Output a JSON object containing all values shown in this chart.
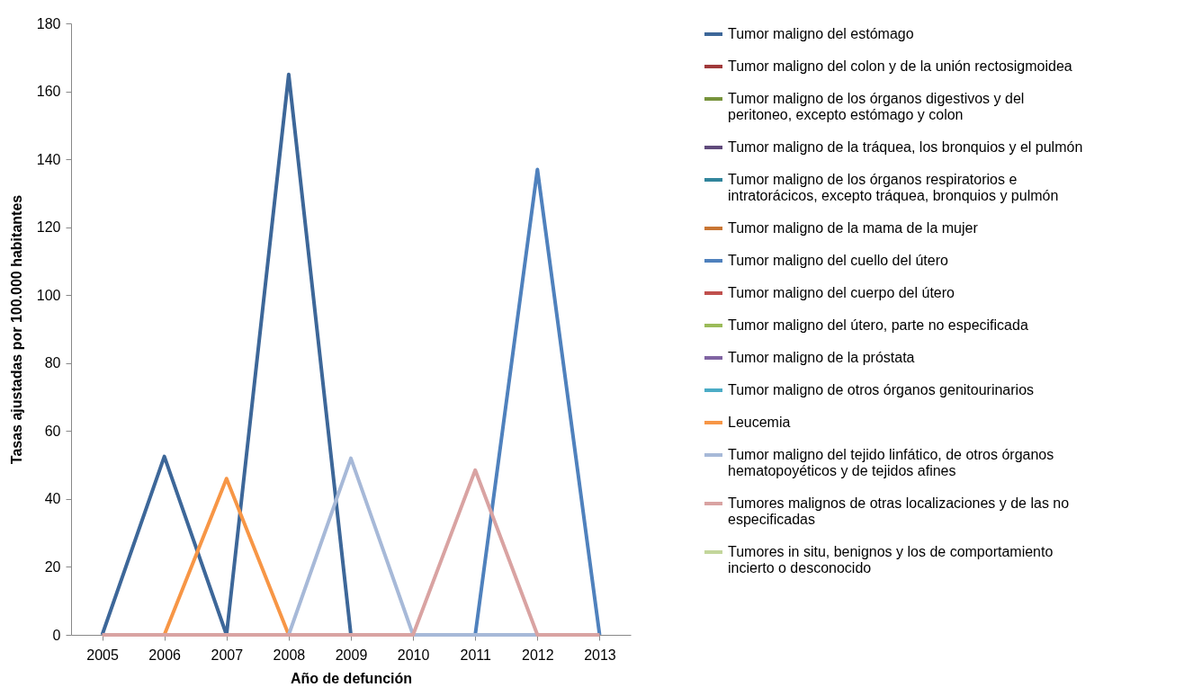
{
  "chart_data": {
    "type": "line",
    "xlabel": "Año de defunción",
    "ylabel": "Tasas ajustadas por 100.000 habitantes",
    "categories": [
      "2005",
      "2006",
      "2007",
      "2008",
      "2009",
      "2010",
      "2011",
      "2012",
      "2013"
    ],
    "ylim": [
      0,
      180
    ],
    "yticks": [
      0,
      20,
      40,
      60,
      80,
      100,
      120,
      140,
      160,
      180
    ],
    "grid": false,
    "legend": "right",
    "marker": "none",
    "line_style": "solid",
    "series": [
      {
        "name": "Tumor maligno del estómago",
        "color": "#3d6799",
        "values": [
          0,
          52.5,
          0,
          165,
          0,
          null,
          null,
          null,
          null
        ]
      },
      {
        "name": "Tumor maligno del colon y de la unión rectosigmoidea",
        "color": "#a0393a",
        "values": [
          null,
          null,
          null,
          null,
          null,
          null,
          null,
          null,
          null
        ]
      },
      {
        "name": "Tumor maligno de los órganos digestivos y del peritoneo, excepto estómago y colon",
        "color": "#77933c",
        "values": [
          null,
          null,
          null,
          null,
          null,
          null,
          null,
          null,
          null
        ]
      },
      {
        "name": "Tumor maligno de la tráquea, los bronquios y el pulmón",
        "color": "#604a7b",
        "values": [
          null,
          null,
          null,
          null,
          null,
          null,
          null,
          null,
          null
        ]
      },
      {
        "name": "Tumor maligno de los órganos respiratorios e intratorácicos, excepto tráquea, bronquios y pulmón",
        "color": "#31859c",
        "values": [
          null,
          null,
          null,
          null,
          null,
          null,
          null,
          null,
          null
        ]
      },
      {
        "name": "Tumor maligno de la mama de la mujer",
        "color": "#c87533",
        "values": [
          null,
          null,
          null,
          null,
          null,
          null,
          null,
          null,
          null
        ]
      },
      {
        "name": "Tumor maligno del cuello del útero",
        "color": "#4f81bd",
        "values": [
          null,
          null,
          null,
          null,
          null,
          null,
          0,
          137,
          0
        ]
      },
      {
        "name": "Tumor maligno del cuerpo del útero",
        "color": "#c0504d",
        "values": [
          null,
          null,
          null,
          null,
          null,
          null,
          null,
          null,
          null
        ]
      },
      {
        "name": "Tumor maligno del útero, parte no especificada",
        "color": "#9bbb59",
        "values": [
          null,
          null,
          null,
          null,
          null,
          null,
          null,
          null,
          null
        ]
      },
      {
        "name": "Tumor maligno de la próstata",
        "color": "#8064a2",
        "values": [
          null,
          null,
          null,
          null,
          null,
          null,
          null,
          null,
          null
        ]
      },
      {
        "name": "Tumor maligno de otros órganos genitourinarios",
        "color": "#4bacc6",
        "values": [
          null,
          null,
          null,
          null,
          null,
          null,
          null,
          null,
          null
        ]
      },
      {
        "name": "Leucemia",
        "color": "#f79646",
        "values": [
          null,
          0,
          46,
          0,
          null,
          null,
          null,
          null,
          null
        ]
      },
      {
        "name": "Tumor maligno del tejido linfático, de otros órganos hematopoyéticos y de tejidos afines",
        "color": "#a7b9d8",
        "values": [
          null,
          null,
          null,
          0,
          52,
          0,
          0,
          0,
          null
        ]
      },
      {
        "name": "Tumores malignos de otras localizaciones y de las no especificadas",
        "color": "#d9a3a2",
        "values": [
          0,
          0,
          0,
          0,
          0,
          0,
          48.5,
          0,
          0
        ]
      },
      {
        "name": "Tumores in situ, benignos y los de comportamiento incierto o desconocido",
        "color": "#c3d69b",
        "values": [
          null,
          null,
          null,
          null,
          null,
          null,
          null,
          null,
          null
        ]
      }
    ]
  }
}
